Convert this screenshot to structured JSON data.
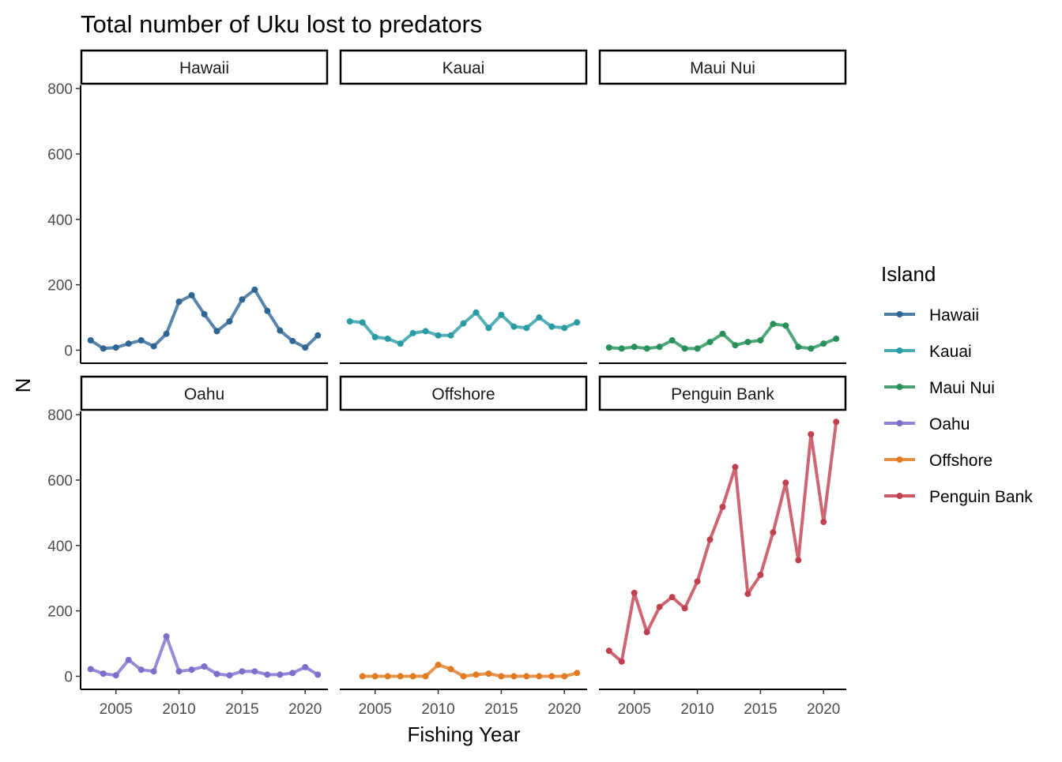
{
  "chart_data": {
    "type": "line",
    "title": "Total number of Uku lost to predators",
    "xlabel": "Fishing Year",
    "ylabel": "N",
    "xlim": [
      2002.2,
      2021.8
    ],
    "ylim": [
      -40,
      810
    ],
    "x_ticks": [
      2005,
      2010,
      2015,
      2020
    ],
    "y_ticks": [
      0,
      200,
      400,
      600,
      800
    ],
    "grid": false,
    "legend": {
      "title": "Island",
      "position": "right"
    },
    "series": [
      {
        "name": "Hawaii",
        "color": "#2E6693",
        "x": [
          2003,
          2004,
          2005,
          2006,
          2007,
          2008,
          2009,
          2010,
          2011,
          2012,
          2013,
          2014,
          2015,
          2016,
          2017,
          2018,
          2019,
          2020,
          2021
        ],
        "y": [
          30,
          5,
          8,
          20,
          30,
          12,
          50,
          148,
          168,
          110,
          58,
          88,
          155,
          185,
          120,
          60,
          28,
          8,
          45
        ]
      },
      {
        "name": "Kauai",
        "color": "#2A9BA3",
        "x": [
          2003,
          2004,
          2005,
          2006,
          2007,
          2008,
          2009,
          2010,
          2011,
          2012,
          2013,
          2014,
          2015,
          2016,
          2017,
          2018,
          2019,
          2020,
          2021
        ],
        "y": [
          88,
          85,
          40,
          35,
          20,
          52,
          58,
          45,
          45,
          82,
          115,
          68,
          108,
          72,
          68,
          100,
          72,
          68,
          85
        ]
      },
      {
        "name": "Maui Nui",
        "color": "#27905A",
        "x": [
          2003,
          2004,
          2005,
          2006,
          2007,
          2008,
          2009,
          2010,
          2011,
          2012,
          2013,
          2014,
          2015,
          2016,
          2017,
          2018,
          2019,
          2020,
          2021
        ],
        "y": [
          8,
          5,
          10,
          5,
          10,
          30,
          5,
          5,
          25,
          50,
          15,
          25,
          30,
          80,
          75,
          10,
          5,
          20,
          35
        ]
      },
      {
        "name": "Oahu",
        "color": "#7B6FCB",
        "x": [
          2003,
          2004,
          2005,
          2006,
          2007,
          2008,
          2009,
          2010,
          2011,
          2012,
          2013,
          2014,
          2015,
          2016,
          2017,
          2018,
          2019,
          2020,
          2021
        ],
        "y": [
          22,
          8,
          3,
          50,
          20,
          15,
          122,
          15,
          20,
          30,
          7,
          3,
          15,
          15,
          5,
          5,
          10,
          28,
          5
        ]
      },
      {
        "name": "Offshore",
        "color": "#E07B24",
        "x": [
          2004,
          2005,
          2006,
          2007,
          2008,
          2009,
          2010,
          2011,
          2012,
          2013,
          2014,
          2015,
          2016,
          2017,
          2018,
          2019,
          2020,
          2021
        ],
        "y": [
          0,
          0,
          0,
          0,
          0,
          0,
          35,
          22,
          0,
          5,
          8,
          0,
          0,
          0,
          0,
          0,
          0,
          10
        ]
      },
      {
        "name": "Penguin Bank",
        "color": "#C0404F",
        "x": [
          2003,
          2004,
          2005,
          2006,
          2007,
          2008,
          2009,
          2010,
          2011,
          2012,
          2013,
          2014,
          2015,
          2016,
          2017,
          2018,
          2019,
          2020,
          2021
        ],
        "y": [
          78,
          45,
          255,
          135,
          212,
          242,
          208,
          290,
          418,
          518,
          640,
          252,
          310,
          440,
          592,
          355,
          740,
          472,
          778
        ]
      }
    ]
  }
}
